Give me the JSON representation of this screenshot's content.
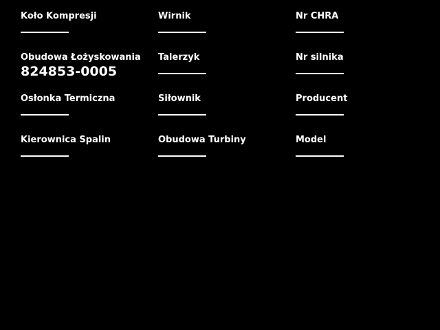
{
  "page": {
    "background_color": "#000000",
    "text_color": "#ffffff"
  },
  "form": {
    "fields": [
      {
        "label": "Koło Kompresji",
        "value": ""
      },
      {
        "label": "Wirnik",
        "value": ""
      },
      {
        "label": "Nr CHRA",
        "value": ""
      },
      {
        "label": "Obudowa Łożyskowania",
        "value": "824853-0005"
      },
      {
        "label": "Talerzyk",
        "value": ""
      },
      {
        "label": "Nr silnika",
        "value": ""
      },
      {
        "label": "Osłonka Termiczna",
        "value": ""
      },
      {
        "label": "Siłownik",
        "value": ""
      },
      {
        "label": "Producent",
        "value": ""
      },
      {
        "label": "Kierownica Spalin",
        "value": ""
      },
      {
        "label": "Obudowa Turbiny",
        "value": ""
      },
      {
        "label": "Model",
        "value": ""
      }
    ]
  }
}
